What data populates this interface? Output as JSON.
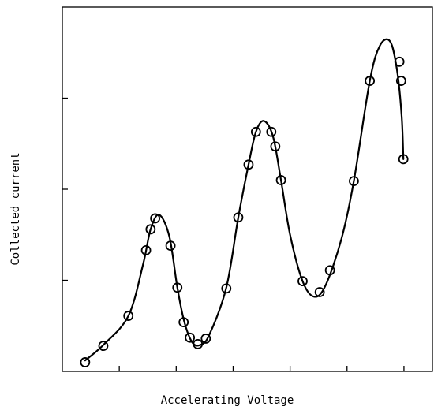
{
  "chart_data": {
    "type": "scatter",
    "title": "",
    "xlabel": "Accelerating Voltage",
    "ylabel": "Collected current",
    "xlim": [
      0,
      6.5
    ],
    "ylim": [
      0,
      4
    ],
    "xticks": [
      1,
      2,
      3,
      4,
      5,
      6
    ],
    "yticks": [
      1,
      2,
      3
    ],
    "tick_labels_shown": false,
    "grid": false,
    "legend": "none",
    "color": "#000000",
    "series": [
      {
        "marker": "open-circle",
        "points": [
          {
            "x": 0.4,
            "y": 0.1
          },
          {
            "x": 0.72,
            "y": 0.28
          },
          {
            "x": 1.16,
            "y": 0.61
          },
          {
            "x": 1.47,
            "y": 1.33
          },
          {
            "x": 1.55,
            "y": 1.56
          },
          {
            "x": 1.63,
            "y": 1.68
          },
          {
            "x": 1.9,
            "y": 1.38
          },
          {
            "x": 2.02,
            "y": 0.92
          },
          {
            "x": 2.13,
            "y": 0.54
          },
          {
            "x": 2.24,
            "y": 0.37
          },
          {
            "x": 2.38,
            "y": 0.3
          },
          {
            "x": 2.52,
            "y": 0.36
          },
          {
            "x": 2.88,
            "y": 0.91
          },
          {
            "x": 3.09,
            "y": 1.69
          },
          {
            "x": 3.27,
            "y": 2.27
          },
          {
            "x": 3.4,
            "y": 2.63
          },
          {
            "x": 3.67,
            "y": 2.63
          },
          {
            "x": 3.74,
            "y": 2.47
          },
          {
            "x": 3.84,
            "y": 2.1
          },
          {
            "x": 4.22,
            "y": 0.99
          },
          {
            "x": 4.52,
            "y": 0.87
          },
          {
            "x": 4.7,
            "y": 1.11
          },
          {
            "x": 5.12,
            "y": 2.09
          },
          {
            "x": 5.4,
            "y": 3.19
          },
          {
            "x": 5.92,
            "y": 3.4
          },
          {
            "x": 5.95,
            "y": 3.19
          },
          {
            "x": 5.99,
            "y": 2.33
          }
        ]
      }
    ],
    "fit_curve": [
      {
        "x": 0.4,
        "y": 0.12
      },
      {
        "x": 0.72,
        "y": 0.29
      },
      {
        "x": 1.16,
        "y": 0.61
      },
      {
        "x": 1.42,
        "y": 1.18
      },
      {
        "x": 1.55,
        "y": 1.56
      },
      {
        "x": 1.7,
        "y": 1.72
      },
      {
        "x": 1.88,
        "y": 1.48
      },
      {
        "x": 2.02,
        "y": 0.92
      },
      {
        "x": 2.14,
        "y": 0.55
      },
      {
        "x": 2.28,
        "y": 0.32
      },
      {
        "x": 2.42,
        "y": 0.29
      },
      {
        "x": 2.58,
        "y": 0.4
      },
      {
        "x": 2.88,
        "y": 0.92
      },
      {
        "x": 3.09,
        "y": 1.69
      },
      {
        "x": 3.27,
        "y": 2.27
      },
      {
        "x": 3.4,
        "y": 2.63
      },
      {
        "x": 3.54,
        "y": 2.75
      },
      {
        "x": 3.7,
        "y": 2.58
      },
      {
        "x": 3.84,
        "y": 2.1
      },
      {
        "x": 4.0,
        "y": 1.5
      },
      {
        "x": 4.22,
        "y": 0.99
      },
      {
        "x": 4.42,
        "y": 0.82
      },
      {
        "x": 4.62,
        "y": 0.94
      },
      {
        "x": 4.9,
        "y": 1.45
      },
      {
        "x": 5.12,
        "y": 2.09
      },
      {
        "x": 5.4,
        "y": 3.19
      },
      {
        "x": 5.58,
        "y": 3.58
      },
      {
        "x": 5.76,
        "y": 3.62
      },
      {
        "x": 5.88,
        "y": 3.3
      },
      {
        "x": 5.96,
        "y": 2.8
      },
      {
        "x": 5.99,
        "y": 2.33
      }
    ]
  }
}
